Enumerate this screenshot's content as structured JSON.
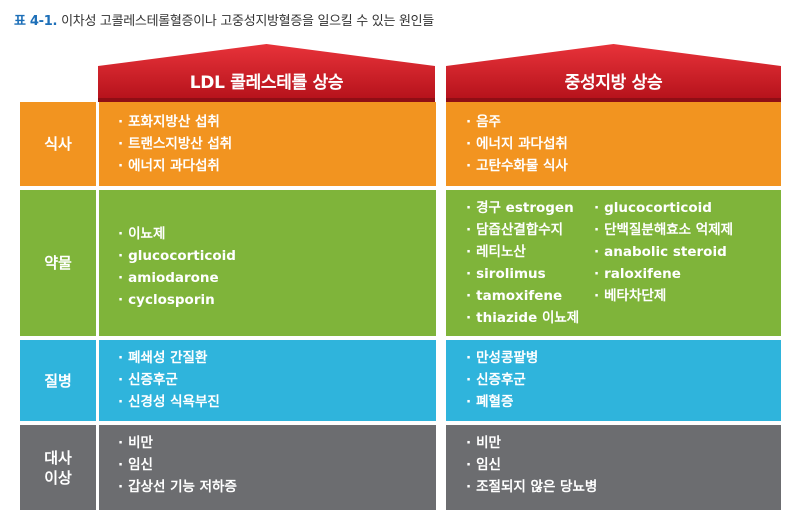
{
  "caption": {
    "number": "표 4-1.",
    "text": "이차성 고콜레스테롤혈증이나 고중성지방혈증을 일으킬 수 있는 원인들"
  },
  "colors": {
    "roof": "#d71e28",
    "diet": "#f29420",
    "drug": "#7fb43a",
    "disease": "#2fb4dc",
    "metabolic": "#6c6d70"
  },
  "columns": {
    "ldl": "LDL 콜레스테롤 상승",
    "tg": "중성지방 상승"
  },
  "rows": {
    "diet": "식사",
    "drug": "약물",
    "disease": "질병",
    "metabolic": "대사\n이상"
  },
  "cells": {
    "ldl_diet": [
      "포화지방산 섭취",
      "트랜스지방산 섭취",
      "에너지 과다섭취"
    ],
    "tg_diet": [
      "음주",
      "에너지 과다섭취",
      "고탄수화물 식사"
    ],
    "ldl_drug": [
      "이뇨제",
      "glucocorticoid",
      "amiodarone",
      "cyclosporin"
    ],
    "tg_drug_left": [
      "경구 estrogen",
      "담즙산결합수지",
      "레티노산",
      "sirolimus",
      "tamoxifene",
      "thiazide 이뇨제"
    ],
    "tg_drug_right": [
      "glucocorticoid",
      "단백질분해효소 억제제",
      "anabolic steroid",
      "raloxifene",
      "베타차단제"
    ],
    "ldl_disease": [
      "폐쇄성 간질환",
      "신증후군",
      "신경성 식욕부진"
    ],
    "tg_disease": [
      "만성콩팥병",
      "신증후군",
      "폐혈증"
    ],
    "ldl_meta": [
      "비만",
      "임신",
      "갑상선 기능 저하증"
    ],
    "tg_meta": [
      "비만",
      "임신",
      "조절되지 않은 당뇨병"
    ]
  }
}
